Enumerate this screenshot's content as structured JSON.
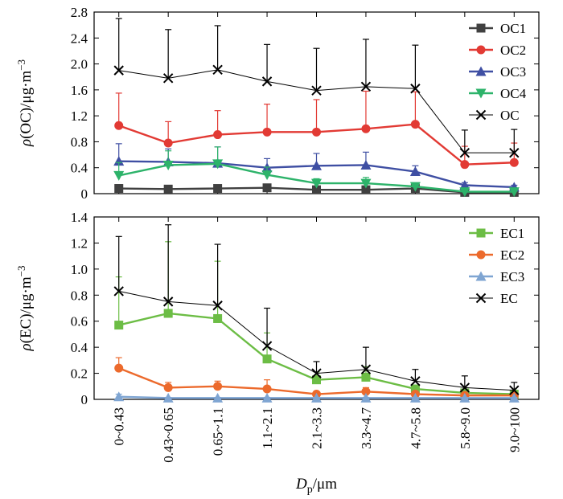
{
  "chart_data": [
    {
      "type": "line",
      "panel": "top",
      "ylabel": {
        "prefix": "ρ",
        "rest": "(OC)/μg·m",
        "sup": "−3"
      },
      "ylim": [
        0,
        2.8
      ],
      "yticks": [
        "0",
        "0.4",
        "0.8",
        "1.2",
        "1.6",
        "2.0",
        "2.4",
        "2.8"
      ],
      "grid": false,
      "legend_position": "top-right",
      "series": [
        {
          "name": "OC1",
          "color": "#404040",
          "marker": "square",
          "values": [
            0.08,
            0.07,
            0.08,
            0.09,
            0.06,
            0.06,
            0.08,
            0.02,
            0.02
          ],
          "errors": [
            0.06,
            0.04,
            0.03,
            0.04,
            0.02,
            0.02,
            0.02,
            0.01,
            0.01
          ]
        },
        {
          "name": "OC2",
          "color": "#e23a34",
          "marker": "circle",
          "values": [
            1.05,
            0.78,
            0.91,
            0.95,
            0.95,
            1.0,
            1.07,
            0.45,
            0.48
          ],
          "errors": [
            0.5,
            0.33,
            0.37,
            0.43,
            0.5,
            0.58,
            0.5,
            0.28,
            0.3
          ]
        },
        {
          "name": "OC3",
          "color": "#3f4fa3",
          "marker": "triangle-up",
          "values": [
            0.5,
            0.49,
            0.47,
            0.4,
            0.43,
            0.44,
            0.34,
            0.13,
            0.1
          ],
          "errors": [
            0.27,
            0.2,
            0.25,
            0.14,
            0.19,
            0.2,
            0.09,
            0.04,
            0.03
          ]
        },
        {
          "name": "OC4",
          "color": "#2db36a",
          "marker": "triangle-down",
          "values": [
            0.28,
            0.44,
            0.46,
            0.29,
            0.16,
            0.16,
            0.11,
            0.03,
            0.03
          ],
          "errors": [
            0.2,
            0.22,
            0.26,
            0.12,
            0.07,
            0.09,
            0.04,
            0.01,
            0.01
          ]
        },
        {
          "name": "OC",
          "color": "#000000",
          "marker": "x",
          "values": [
            1.9,
            1.78,
            1.91,
            1.73,
            1.59,
            1.65,
            1.62,
            0.63,
            0.63
          ],
          "errors": [
            0.8,
            0.75,
            0.68,
            0.57,
            0.65,
            0.73,
            0.67,
            0.35,
            0.36
          ]
        }
      ]
    },
    {
      "type": "line",
      "panel": "bottom",
      "ylabel": {
        "prefix": "ρ",
        "rest": "(EC)/μg·m",
        "sup": "−3"
      },
      "xlabel": {
        "main": "D",
        "sub": "p",
        "rest": "/μm"
      },
      "categories": [
        "0~0.43",
        "0.43~0.65",
        "0.65~1.1",
        "1.1~2.1",
        "2.1~3.3",
        "3.3~4.7",
        "4.7~5.8",
        "5.8~9.0",
        "9.0~100"
      ],
      "ylim": [
        0,
        1.4
      ],
      "yticks": [
        "0",
        "0.2",
        "0.4",
        "0.6",
        "0.8",
        "1.0",
        "1.2",
        "1.4"
      ],
      "grid": false,
      "legend_position": "top-right",
      "series": [
        {
          "name": "EC1",
          "color": "#6cbd45",
          "marker": "square",
          "values": [
            0.57,
            0.66,
            0.62,
            0.31,
            0.15,
            0.17,
            0.08,
            0.05,
            0.04
          ],
          "errors": [
            0.37,
            0.55,
            0.44,
            0.2,
            0.06,
            0.08,
            0.03,
            0.02,
            0.02
          ]
        },
        {
          "name": "EC2",
          "color": "#ec6a2c",
          "marker": "circle",
          "values": [
            0.24,
            0.09,
            0.1,
            0.08,
            0.04,
            0.06,
            0.04,
            0.03,
            0.03
          ],
          "errors": [
            0.08,
            0.04,
            0.04,
            0.07,
            0.02,
            0.03,
            0.02,
            0.01,
            0.01
          ]
        },
        {
          "name": "EC3",
          "color": "#7fa5d2",
          "marker": "triangle-up",
          "values": [
            0.02,
            0.01,
            0.01,
            0.01,
            0.01,
            0.01,
            0.01,
            0.01,
            0.01
          ],
          "errors": [
            0.02,
            0.005,
            0.005,
            0.005,
            0.005,
            0.005,
            0.005,
            0.005,
            0.005
          ]
        },
        {
          "name": "EC",
          "color": "#000000",
          "marker": "x",
          "values": [
            0.83,
            0.75,
            0.72,
            0.41,
            0.2,
            0.23,
            0.14,
            0.09,
            0.07
          ],
          "errors": [
            0.42,
            0.59,
            0.47,
            0.29,
            0.09,
            0.17,
            0.09,
            0.09,
            0.06
          ]
        }
      ]
    }
  ]
}
